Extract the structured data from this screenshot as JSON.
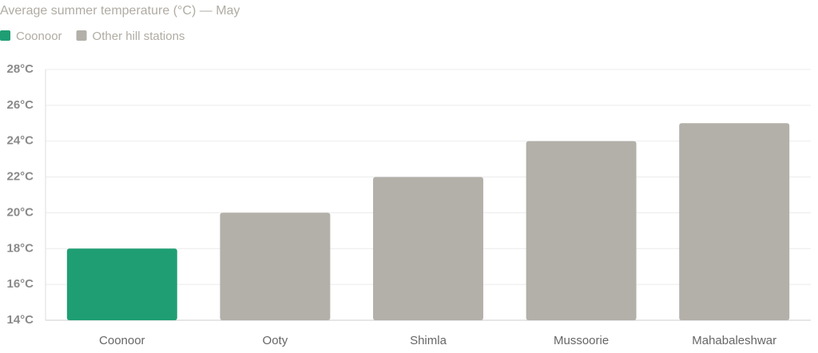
{
  "chart_data": {
    "type": "bar",
    "title": "Average summer temperature (°C) — May",
    "categories": [
      "Coonoor",
      "Ooty",
      "Shimla",
      "Mussoorie",
      "Mahabaleshwar"
    ],
    "series": [
      {
        "name": "Coonoor",
        "color": "#1f9e74",
        "values": [
          18,
          null,
          null,
          null,
          null
        ]
      },
      {
        "name": "Other hill stations",
        "color": "#b3b0a9",
        "values": [
          null,
          20,
          22,
          24,
          25
        ]
      }
    ],
    "ylim": [
      14,
      28
    ],
    "yticks": [
      {
        "value": 14,
        "label": "14°C"
      },
      {
        "value": 16,
        "label": "16°C"
      },
      {
        "value": 18,
        "label": "18°C"
      },
      {
        "value": 20,
        "label": "20°C"
      },
      {
        "value": 22,
        "label": "22°C"
      },
      {
        "value": 24,
        "label": "24°C"
      },
      {
        "value": 26,
        "label": "26°C"
      },
      {
        "value": 28,
        "label": "28°C"
      }
    ],
    "grid": true
  }
}
